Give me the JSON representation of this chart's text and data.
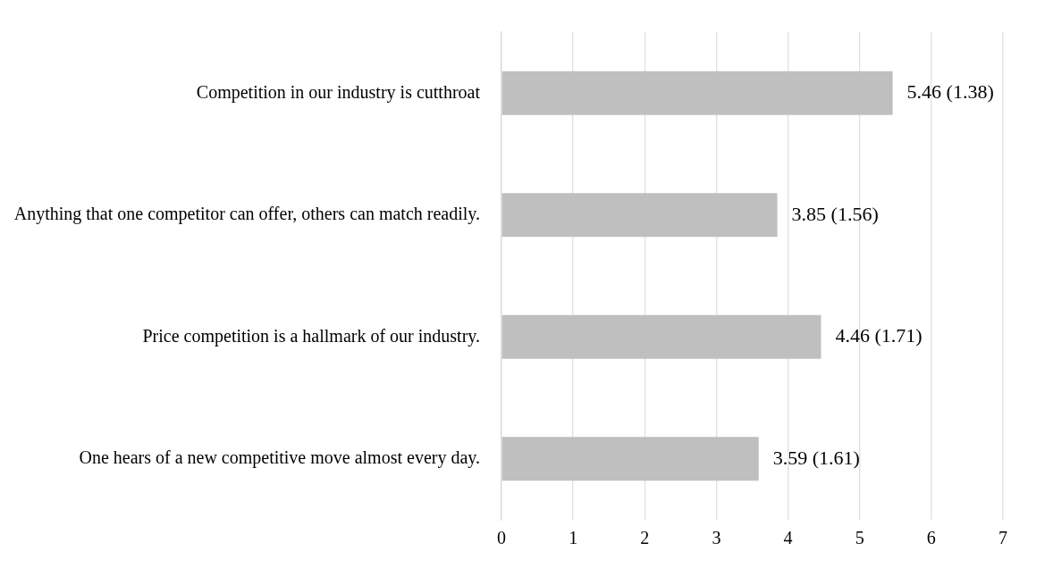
{
  "chart_data": {
    "type": "bar",
    "orientation": "horizontal",
    "categories": [
      "Competition in our industry is cutthroat",
      "Anything that one competitor can offer, others can match readily.",
      "Price competition is a hallmark of our industry.",
      "One hears of a new competitive move almost every day."
    ],
    "values": [
      5.46,
      3.85,
      4.46,
      3.59
    ],
    "value_labels": [
      "5.46 (1.38)",
      "3.85 (1.56)",
      "4.46 (1.71)",
      "3.59 (1.61)"
    ],
    "color": "#bfbfbf",
    "xlim": [
      0,
      7
    ],
    "xticks": [
      0,
      1,
      2,
      3,
      4,
      5,
      6,
      7
    ],
    "grid": "x",
    "legend": false
  }
}
